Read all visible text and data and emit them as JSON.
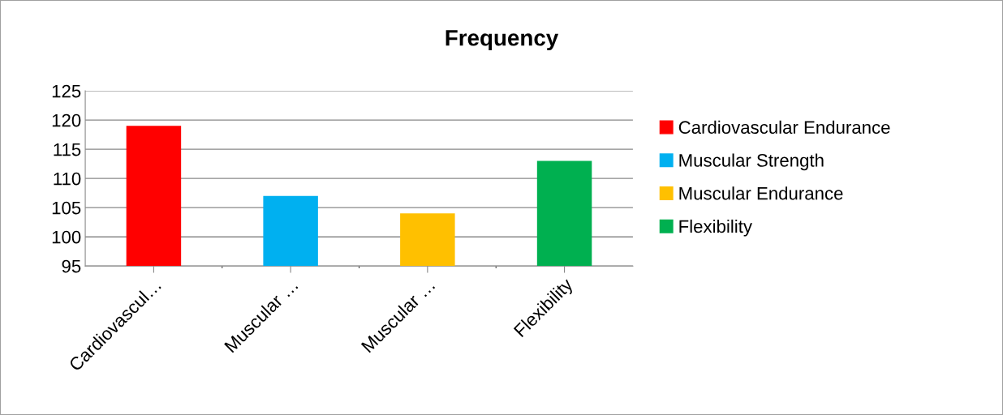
{
  "chart_data": {
    "type": "bar",
    "title": "Frequency",
    "categories": [
      "Cardiovascul…",
      "Muscular …",
      "Muscular …",
      "Flexibility"
    ],
    "series": [
      {
        "name": "Cardiovascular Endurance",
        "color": "#ff0000",
        "values": [
          119,
          null,
          null,
          null
        ]
      },
      {
        "name": "Muscular Strength",
        "color": "#00b0f0",
        "values": [
          null,
          107,
          null,
          null
        ]
      },
      {
        "name": "Muscular Endurance",
        "color": "#ffc000",
        "values": [
          null,
          null,
          104,
          null
        ]
      },
      {
        "name": "Flexibility",
        "color": "#00b050",
        "values": [
          null,
          null,
          null,
          113
        ]
      }
    ],
    "ylim": [
      95,
      125
    ],
    "yticks": [
      95,
      100,
      105,
      110,
      115,
      120,
      125
    ],
    "grid": "y",
    "legend": "right"
  }
}
